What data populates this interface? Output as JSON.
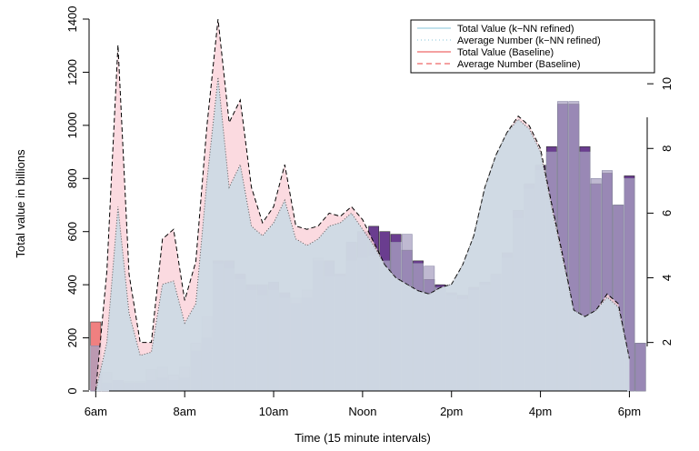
{
  "chart_data": {
    "type": "bar+area",
    "title": "",
    "xlabel": "Time (15 minute intervals)",
    "ylabel": "Total value in billions",
    "xlim": [
      -0.6,
      49.6
    ],
    "ylim": [
      0,
      1400
    ],
    "y2lim": [
      0.5,
      12.0
    ],
    "x_ticks": [
      {
        "x": 0,
        "label": "6am"
      },
      {
        "x": 8,
        "label": "8am"
      },
      {
        "x": 16,
        "label": "10am"
      },
      {
        "x": 24,
        "label": "Noon"
      },
      {
        "x": 32,
        "label": "2pm"
      },
      {
        "x": 40,
        "label": "4pm"
      },
      {
        "x": 48,
        "label": "6pm"
      }
    ],
    "y_ticks": [
      0,
      200,
      400,
      600,
      800,
      1000,
      1200,
      1400
    ],
    "y2_ticks": [
      2,
      4,
      6,
      8,
      10
    ],
    "grid": false,
    "legend_position": "top-right",
    "legend": [
      {
        "label": "Total Value (k−NN refined)",
        "style": "solid",
        "color": "#add8e6"
      },
      {
        "label": "Average Number (k−NN refined)",
        "style": "dotted",
        "color": "#add8e6"
      },
      {
        "label": "Total Value (Baseline)",
        "style": "solid",
        "color": "#f08080"
      },
      {
        "label": "Average Number (Baseline)",
        "style": "dashed",
        "color": "#f08080"
      }
    ],
    "colors": {
      "bar_dark": "#6a3d8f",
      "bar_light": "#aaa2c2",
      "knn_fill": "#c6dae5",
      "base_fill": "#fad4da",
      "base_bar_start": "#f08080"
    },
    "series": [
      {
        "name": "Total Value (Baseline)",
        "kind": "bar",
        "values": [
          260,
          30,
          40,
          30,
          30,
          40,
          50,
          40,
          50,
          150,
          200,
          490,
          490,
          440,
          400,
          400,
          410,
          370,
          330,
          350,
          490,
          490,
          440,
          560,
          600,
          620,
          600,
          590,
          530,
          490,
          420,
          400,
          370,
          360,
          390,
          410,
          440,
          520,
          680,
          780,
          850,
          920,
          1080,
          1080,
          920,
          780,
          820,
          700,
          810,
          180
        ]
      },
      {
        "name": "Total Value (k−NN refined)",
        "kind": "bar",
        "values": [
          170,
          70,
          40,
          35,
          35,
          80,
          90,
          60,
          90,
          180,
          280,
          480,
          460,
          420,
          380,
          360,
          380,
          350,
          350,
          380,
          500,
          430,
          430,
          490,
          500,
          510,
          490,
          560,
          590,
          480,
          470,
          390,
          360,
          345,
          380,
          400,
          440,
          500,
          650,
          760,
          830,
          900,
          1090,
          1090,
          900,
          800,
          830,
          700,
          800,
          180
        ]
      },
      {
        "name": "Average Number (Baseline)",
        "kind": "area",
        "values": [
          0.5,
          4.2,
          11.2,
          4.1,
          2.0,
          2.0,
          5.2,
          5.5,
          3.3,
          4.5,
          8.7,
          12.0,
          8.8,
          9.5,
          6.8,
          5.7,
          6.2,
          7.5,
          5.6,
          5.5,
          5.6,
          6.0,
          5.9,
          6.2,
          5.8,
          5.1,
          4.4,
          4.0,
          3.8,
          3.6,
          3.5,
          3.7,
          3.8,
          4.4,
          5.3,
          6.8,
          7.8,
          8.5,
          9.0,
          8.7,
          8.0,
          6.3,
          4.7,
          3.0,
          2.8,
          3.0,
          3.5,
          3.2,
          1.5
        ]
      },
      {
        "name": "Average Number (k−NN refined)",
        "kind": "area",
        "values": [
          0.5,
          2.0,
          6.2,
          2.9,
          1.6,
          1.7,
          3.8,
          3.9,
          2.6,
          3.2,
          7.0,
          10.2,
          6.8,
          7.5,
          5.6,
          5.3,
          5.7,
          6.4,
          5.2,
          5.0,
          5.2,
          5.6,
          5.7,
          6.0,
          5.5,
          5.0,
          4.4,
          4.0,
          3.8,
          3.6,
          3.5,
          3.7,
          3.8,
          4.4,
          5.3,
          6.8,
          7.8,
          8.5,
          8.9,
          8.6,
          7.9,
          6.2,
          4.6,
          3.0,
          2.8,
          3.0,
          3.4,
          3.1,
          1.5
        ]
      }
    ]
  }
}
